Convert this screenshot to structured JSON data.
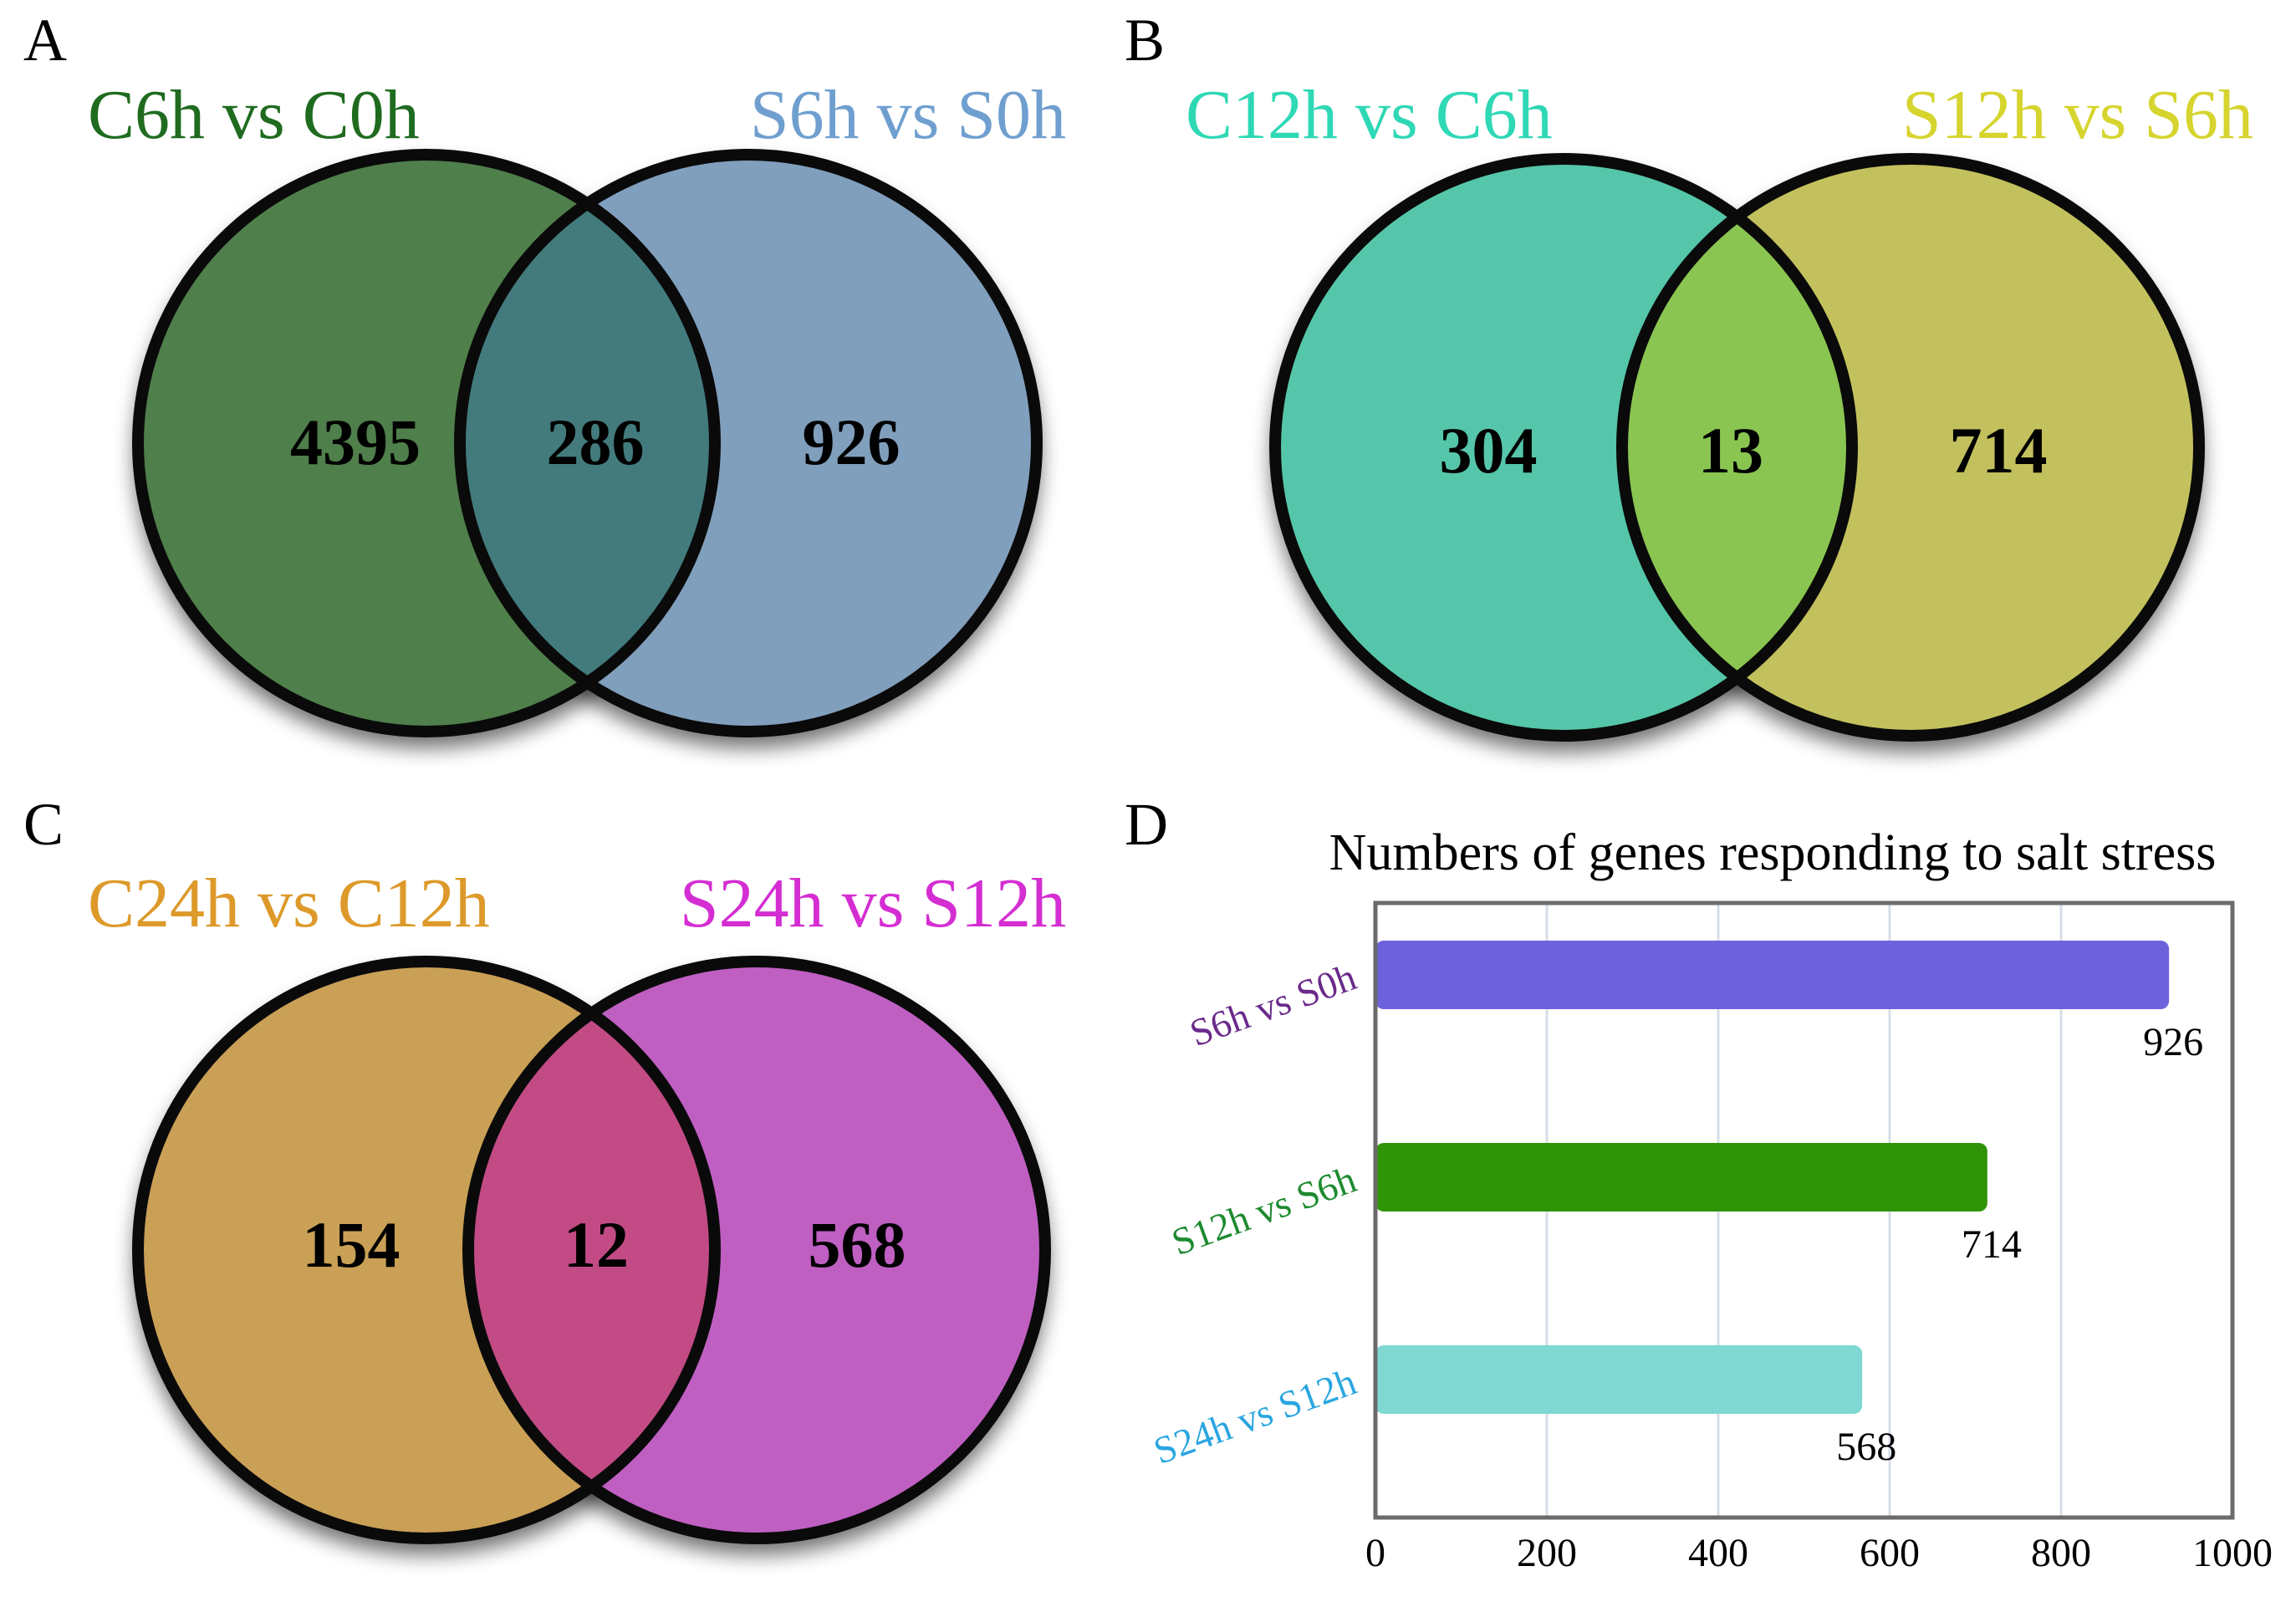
{
  "panels": {
    "A": {
      "letter": "A",
      "left_label": "C6h vs C0h",
      "right_label": "S6h vs S0h",
      "left_only": "4395",
      "overlap": "286",
      "right_only": "926",
      "colors": {
        "left": "#4f7f4a",
        "right": "#809fbd",
        "overlap": "#437b7d",
        "left_text": "#1f6b1f",
        "right_text": "#6f9fcf"
      }
    },
    "B": {
      "letter": "B",
      "left_label": "C12h vs C6h",
      "right_label": "S12h vs S6h",
      "left_only": "304",
      "overlap": "13",
      "right_only": "714",
      "colors": {
        "left": "#55c6aa",
        "right": "#c3c15e",
        "overlap": "#8ac552",
        "left_text": "#2fd8b5",
        "right_text": "#d6d42e"
      }
    },
    "C": {
      "letter": "C",
      "left_label": "C24h vs C12h",
      "right_label": "S24h vs S12h",
      "left_only": "154",
      "overlap": "12",
      "right_only": "568",
      "colors": {
        "left": "#c9a055",
        "right": "#bf5fc2",
        "overlap": "#c34b85",
        "left_text": "#dd9a2a",
        "right_text": "#d42ed2"
      }
    }
  },
  "chart_panel_letter": "D",
  "chart_data": {
    "type": "bar",
    "orientation": "horizontal",
    "title": "Numbers of genes responding to salt stress",
    "categories": [
      "S6h vs S0h",
      "S12h vs S6h",
      "S24h vs S12h"
    ],
    "values": [
      926,
      714,
      568
    ],
    "value_labels": [
      "926",
      "714",
      "568"
    ],
    "xlim": [
      0,
      1000
    ],
    "xticks": [
      "0",
      "200",
      "400",
      "600",
      "800",
      "1000"
    ],
    "bar_colors": [
      "#6e62dc",
      "#2f9407",
      "#7fd9d2"
    ],
    "category_colors": [
      "#6a2a8a",
      "#1d8a2e",
      "#2aa6e0"
    ],
    "grid": true
  }
}
